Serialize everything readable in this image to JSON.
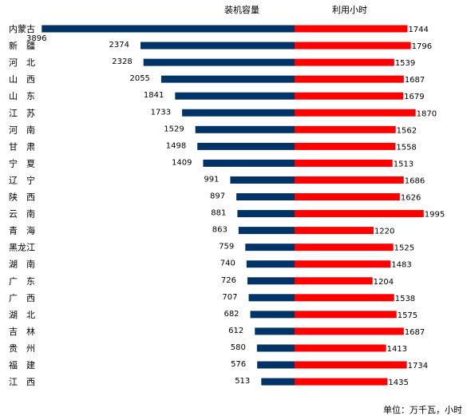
{
  "chart_data": {
    "type": "bar",
    "title": "",
    "unit_note": "单位：万千瓦，小时",
    "colors": {
      "capacity": "#003366",
      "hours": "#ff0000"
    },
    "series": [
      {
        "name": "装机容量"
      },
      {
        "name": "利用小时"
      }
    ],
    "rows": [
      {
        "province": "内蒙古",
        "capacity": 3896,
        "hours": 1744
      },
      {
        "province": "新　疆",
        "capacity": 2374,
        "hours": 1796
      },
      {
        "province": "河　北",
        "capacity": 2328,
        "hours": 1539
      },
      {
        "province": "山　西",
        "capacity": 2055,
        "hours": 1687
      },
      {
        "province": "山　东",
        "capacity": 1841,
        "hours": 1679
      },
      {
        "province": "江　苏",
        "capacity": 1733,
        "hours": 1870
      },
      {
        "province": "河　南",
        "capacity": 1529,
        "hours": 1562
      },
      {
        "province": "甘　肃",
        "capacity": 1498,
        "hours": 1558
      },
      {
        "province": "宁　夏",
        "capacity": 1409,
        "hours": 1513
      },
      {
        "province": "辽　宁",
        "capacity": 991,
        "hours": 1686
      },
      {
        "province": "陕　西",
        "capacity": 897,
        "hours": 1626
      },
      {
        "province": "云　南",
        "capacity": 881,
        "hours": 1995
      },
      {
        "province": "青　海",
        "capacity": 863,
        "hours": 1220
      },
      {
        "province": "黑龙江",
        "capacity": 759,
        "hours": 1525
      },
      {
        "province": "湖　南",
        "capacity": 740,
        "hours": 1483
      },
      {
        "province": "广　东",
        "capacity": 726,
        "hours": 1204
      },
      {
        "province": "广　西",
        "capacity": 707,
        "hours": 1538
      },
      {
        "province": "湖　北",
        "capacity": 682,
        "hours": 1575
      },
      {
        "province": "吉　林",
        "capacity": 612,
        "hours": 1687
      },
      {
        "province": "贵　州",
        "capacity": 580,
        "hours": 1413
      },
      {
        "province": "福　建",
        "capacity": 576,
        "hours": 1734
      },
      {
        "province": "江　西",
        "capacity": 513,
        "hours": 1435
      }
    ]
  }
}
